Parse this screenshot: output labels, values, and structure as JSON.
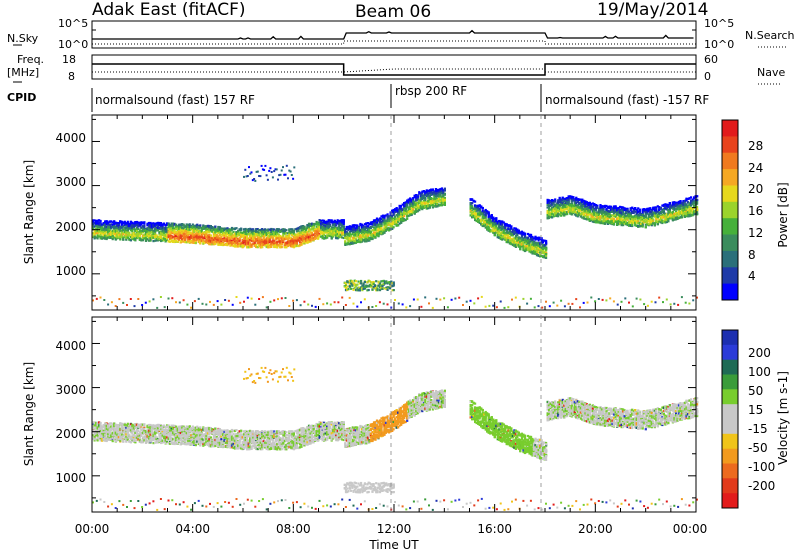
{
  "header": {
    "radar": "Adak East (fitACF)",
    "beam": "Beam 06",
    "date": "19/May/2014"
  },
  "panels": {
    "noise_left": "N.Sky",
    "noise_right": "N.Search",
    "noise_left_ticks": [
      "10^5",
      "10^0"
    ],
    "noise_right_ticks": [
      "10^5",
      "10^0"
    ],
    "freq_label_1": "Freq.",
    "freq_label_2": "[MHz]",
    "freq_ticks": [
      "18",
      "8"
    ],
    "nave_label": "Nave",
    "nave_ticks": [
      "60",
      "0"
    ],
    "cpid_label": "CPID",
    "cpid_segments": [
      "normalsound (fast) 157 RF",
      "rbsp 200 RF",
      "normalsound (fast) -157 RF"
    ]
  },
  "axes": {
    "ylabel": "Slant Range [km]",
    "xlabel": "Time UT",
    "x_ticks": [
      "00:00",
      "04:00",
      "08:00",
      "12:00",
      "16:00",
      "20:00",
      "00:00"
    ],
    "y_ticks": [
      "1000",
      "2000",
      "3000",
      "4000"
    ]
  },
  "colorbars": {
    "power_label": "Power [dB]",
    "power_ticks": [
      "28",
      "24",
      "20",
      "16",
      "12",
      "8",
      "4"
    ],
    "power_colors": [
      "#0000ff",
      "#1e3aa8",
      "#2a6f7a",
      "#3a8c5c",
      "#46b03a",
      "#9bd32c",
      "#e6d81c",
      "#f5a823",
      "#f07a1f",
      "#e8431c",
      "#e21b1b"
    ],
    "velocity_label": "Velocity [m s-1]",
    "velocity_ticks": [
      "200",
      "100",
      "50",
      "15",
      "-15",
      "-50",
      "-100",
      "-200"
    ],
    "velocity_colors": [
      "#1c2fb0",
      "#2b3bd8",
      "#1f6b55",
      "#3a9c3a",
      "#78cd2e",
      "#c8c8c8",
      "#c8c8c8",
      "#f0c419",
      "#f29a1e",
      "#ec6a1e",
      "#e23a1b",
      "#e21b1b"
    ]
  },
  "chart_data": [
    {
      "type": "heatmap",
      "title": "Power [dB]",
      "xlabel": "Time UT",
      "ylabel": "Slant Range [km]",
      "xlim": [
        0,
        24
      ],
      "ylim": [
        180,
        4600
      ],
      "color_range": [
        0,
        30
      ],
      "echo_bands": [
        {
          "t": [
            0,
            2,
            4,
            6,
            8,
            9,
            10
          ],
          "range_km": [
            1950,
            1900,
            1850,
            1750,
            1750,
            1950,
            1950
          ]
        },
        {
          "t": [
            10,
            11,
            12,
            13,
            14
          ],
          "range_km": [
            1800,
            1900,
            2200,
            2600,
            2700
          ]
        },
        {
          "t": [
            15,
            16,
            17,
            18
          ],
          "range_km": [
            2450,
            2000,
            1700,
            1500
          ]
        },
        {
          "t": [
            18,
            19,
            20,
            22,
            24
          ],
          "range_km": [
            2400,
            2500,
            2300,
            2200,
            2500
          ]
        }
      ]
    },
    {
      "type": "heatmap",
      "title": "Velocity [m s-1]",
      "xlabel": "Time UT",
      "ylabel": "Slant Range [km]",
      "xlim": [
        0,
        24
      ],
      "ylim": [
        180,
        4600
      ],
      "color_range": [
        -200,
        200
      ]
    }
  ]
}
